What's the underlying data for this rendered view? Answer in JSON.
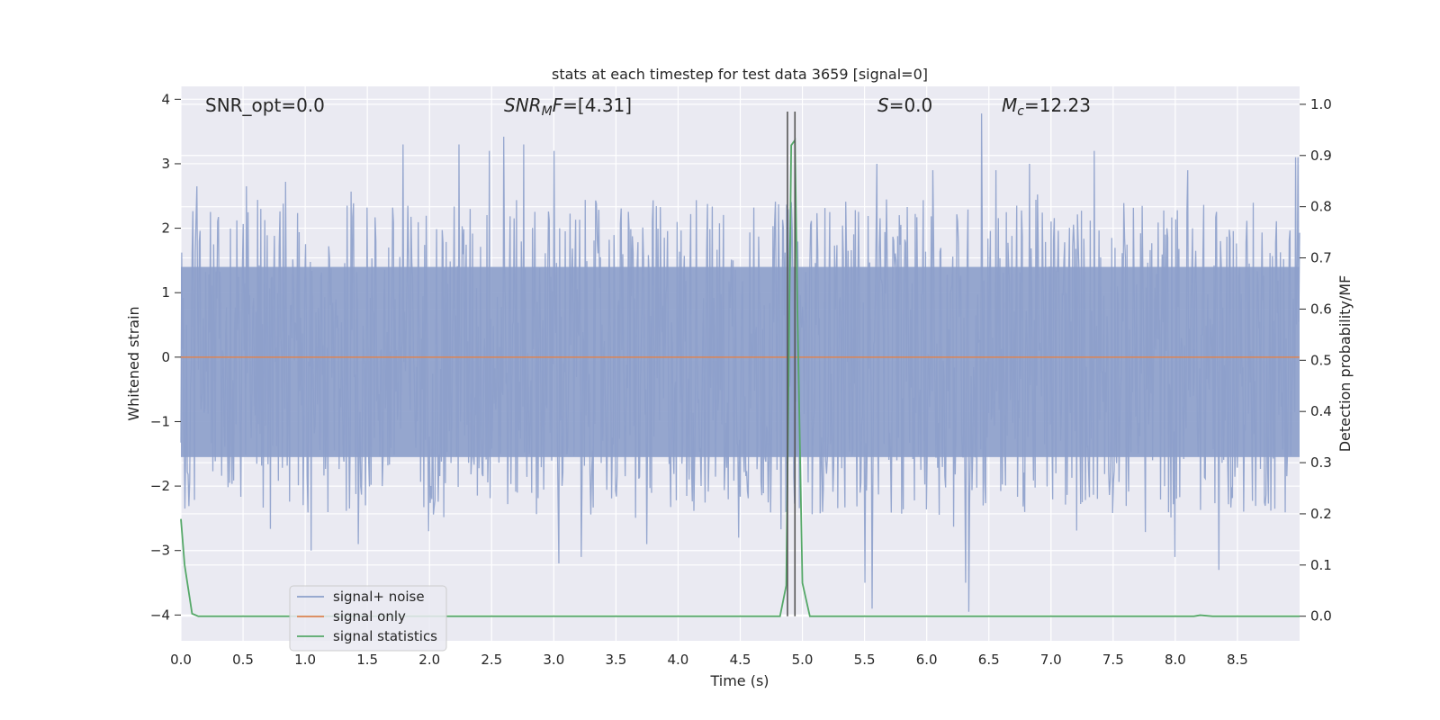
{
  "chart_data": {
    "type": "line",
    "title": "stats at each timestep for test data 3659 [signal=0]",
    "xlabel": "Time (s)",
    "ylabel_left": "Whitened strain",
    "ylabel_right": "Detection probability/MF",
    "xlim": [
      0.0,
      9.0
    ],
    "ylim_left": [
      -4.4,
      4.2
    ],
    "ylim_right": [
      -0.048,
      1.035
    ],
    "x_ticks": [
      "0.0",
      "0.5",
      "1.0",
      "1.5",
      "2.0",
      "2.5",
      "3.0",
      "3.5",
      "4.0",
      "4.5",
      "5.0",
      "5.5",
      "6.0",
      "6.5",
      "7.0",
      "7.5",
      "8.0",
      "8.5"
    ],
    "y_left_ticks": [
      "4",
      "3",
      "2",
      "1",
      "0",
      "−1",
      "−2",
      "−3",
      "−4"
    ],
    "y_right_ticks": [
      "1.0",
      "0.9",
      "0.8",
      "0.7",
      "0.6",
      "0.5",
      "0.4",
      "0.3",
      "0.2",
      "0.1",
      "0.0"
    ],
    "grid": true,
    "legend_position": "lower-left",
    "annotations": [
      {
        "text": "SNR_opt=0.0"
      },
      {
        "text": "SNR_MF=[4.31]"
      },
      {
        "text": "S=0.0"
      },
      {
        "text": "M_c=12.23"
      }
    ],
    "vertical_markers_x": [
      4.88,
      4.94
    ],
    "series": [
      {
        "name": "signal+ noise",
        "color": "#8da0cb",
        "axis": "left",
        "description": "whitened strain noise, approximately within [-2.6, 2.6] with spikes to about 3.4 and -4.0",
        "spikes": [
          [
            0.03,
            -2.35
          ],
          [
            0.13,
            2.65
          ],
          [
            0.53,
            2.65
          ],
          [
            0.84,
            2.72
          ],
          [
            1.05,
            -3.0
          ],
          [
            1.43,
            -2.9
          ],
          [
            1.79,
            3.3
          ],
          [
            1.99,
            -2.7
          ],
          [
            2.24,
            3.3
          ],
          [
            2.48,
            3.2
          ],
          [
            2.6,
            3.42
          ],
          [
            2.76,
            3.3
          ],
          [
            3.0,
            3.2
          ],
          [
            3.04,
            -3.2
          ],
          [
            3.22,
            -3.1
          ],
          [
            3.75,
            -2.9
          ],
          [
            4.49,
            -2.8
          ],
          [
            5.5,
            -3.5
          ],
          [
            5.56,
            -3.9
          ],
          [
            5.6,
            3.0
          ],
          [
            6.05,
            2.9
          ],
          [
            6.31,
            -3.5
          ],
          [
            6.34,
            -3.95
          ],
          [
            6.44,
            3.78
          ],
          [
            6.56,
            2.9
          ],
          [
            6.83,
            3.0
          ],
          [
            7.35,
            3.2
          ],
          [
            8.0,
            -3.1
          ],
          [
            8.1,
            2.9
          ],
          [
            8.35,
            -3.3
          ],
          [
            8.97,
            3.1
          ],
          [
            8.99,
            3.1
          ]
        ],
        "noise_amplitude": 2.45
      },
      {
        "name": "signal only",
        "color": "#dd8452",
        "axis": "left",
        "x": [
          0.0,
          9.0
        ],
        "y": [
          0.0,
          0.0
        ]
      },
      {
        "name": "signal statistics",
        "color": "#55a868",
        "axis": "right",
        "x": [
          0.0,
          0.03,
          0.09,
          0.14,
          1.0,
          2.0,
          3.0,
          4.0,
          4.82,
          4.87,
          4.91,
          4.94,
          4.96,
          5.0,
          5.06,
          5.5,
          6.5,
          7.5,
          8.0,
          8.15,
          8.2,
          8.3,
          9.0
        ],
        "y": [
          0.19,
          0.1,
          0.005,
          0.0,
          0.0,
          0.0,
          0.0,
          0.0,
          0.0,
          0.06,
          0.92,
          0.93,
          0.6,
          0.065,
          0.0,
          0.0,
          0.0,
          0.0,
          0.0,
          0.0,
          0.002,
          0.0,
          0.0
        ]
      }
    ]
  }
}
